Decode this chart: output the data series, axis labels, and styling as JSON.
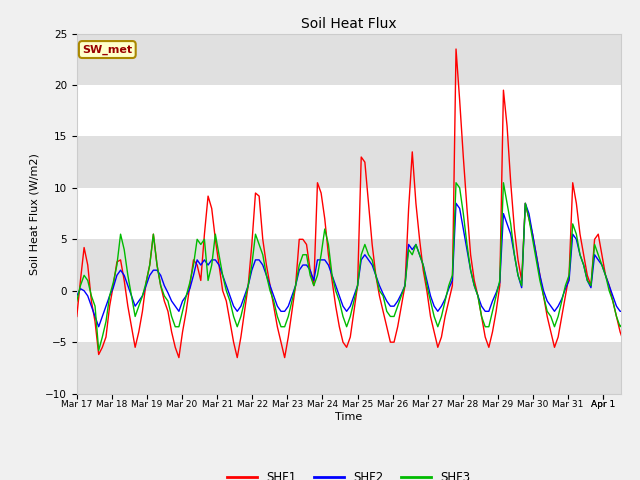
{
  "title": "Soil Heat Flux",
  "ylabel": "Soil Heat Flux (W/m2)",
  "xlabel": "Time",
  "ylim": [
    -10,
    25
  ],
  "yticks": [
    -10,
    -5,
    0,
    5,
    10,
    15,
    20,
    25
  ],
  "bg_color": "#f0f0f0",
  "ax_bg_color": "#e0e0e0",
  "grid_color": "#ffffff",
  "shf1_color": "#ff0000",
  "shf2_color": "#0000ff",
  "shf3_color": "#00bb00",
  "annotation_text": "SW_met",
  "annotation_bg": "#ffffcc",
  "annotation_border": "#aa8800",
  "annotation_text_color": "#990000",
  "legend_labels": [
    "SHF1",
    "SHF2",
    "SHF3"
  ],
  "shf1": [
    -2.5,
    1.0,
    4.2,
    2.5,
    -1.0,
    -3.0,
    -6.2,
    -5.5,
    -4.5,
    -1.5,
    0.5,
    2.8,
    3.0,
    1.0,
    -1.5,
    -3.5,
    -5.5,
    -4.0,
    -2.0,
    0.8,
    2.5,
    5.5,
    2.5,
    0.5,
    -1.0,
    -2.0,
    -4.0,
    -5.5,
    -6.5,
    -4.0,
    -2.0,
    0.5,
    3.0,
    2.5,
    1.0,
    5.5,
    9.2,
    8.0,
    5.0,
    2.5,
    0.0,
    -1.0,
    -3.0,
    -5.0,
    -6.5,
    -4.5,
    -2.0,
    0.5,
    4.5,
    9.5,
    9.2,
    5.0,
    2.5,
    0.5,
    -1.5,
    -3.5,
    -5.0,
    -6.5,
    -4.5,
    -2.0,
    0.5,
    5.0,
    5.0,
    4.5,
    2.0,
    0.5,
    10.5,
    9.5,
    7.0,
    3.5,
    1.0,
    -1.5,
    -3.5,
    -5.0,
    -5.5,
    -4.5,
    -2.0,
    0.5,
    13.0,
    12.5,
    8.5,
    4.5,
    1.5,
    -0.5,
    -2.0,
    -3.5,
    -5.0,
    -5.0,
    -3.5,
    -1.5,
    0.5,
    8.0,
    13.5,
    8.5,
    5.0,
    2.0,
    0.0,
    -2.5,
    -4.0,
    -5.5,
    -4.5,
    -2.5,
    -1.0,
    0.5,
    23.5,
    18.5,
    13.0,
    8.0,
    3.5,
    1.0,
    -0.5,
    -2.5,
    -4.5,
    -5.5,
    -4.0,
    -2.0,
    0.5,
    19.5,
    16.0,
    10.5,
    6.0,
    3.0,
    1.0,
    8.5,
    7.0,
    5.5,
    3.5,
    1.5,
    -0.5,
    -2.5,
    -4.0,
    -5.5,
    -4.5,
    -2.5,
    -0.5,
    1.5,
    10.5,
    8.5,
    5.5,
    3.5,
    1.5,
    0.5,
    5.0,
    5.5,
    3.5,
    1.5,
    0.5,
    -1.0,
    -2.5,
    -4.0,
    -5.0,
    -4.5,
    -2.5,
    0.5,
    5.0
  ],
  "shf2": [
    -0.5,
    0.2,
    0.0,
    -0.5,
    -1.5,
    -2.5,
    -3.5,
    -2.5,
    -1.5,
    -0.5,
    0.3,
    1.5,
    2.0,
    1.5,
    0.5,
    -0.5,
    -1.5,
    -1.0,
    -0.5,
    0.5,
    1.5,
    2.0,
    2.0,
    1.5,
    0.5,
    -0.2,
    -1.0,
    -1.5,
    -2.0,
    -1.0,
    -0.5,
    0.2,
    1.5,
    3.0,
    2.5,
    3.0,
    2.5,
    3.0,
    3.0,
    2.5,
    1.5,
    0.5,
    -0.5,
    -1.5,
    -2.0,
    -1.5,
    -0.5,
    0.5,
    2.0,
    3.0,
    3.0,
    2.5,
    1.5,
    0.5,
    -0.5,
    -1.5,
    -2.0,
    -2.0,
    -1.5,
    -0.5,
    0.5,
    2.0,
    2.5,
    2.5,
    2.0,
    1.0,
    3.0,
    3.0,
    3.0,
    2.5,
    1.5,
    0.5,
    -0.5,
    -1.5,
    -2.0,
    -1.5,
    -0.5,
    0.5,
    3.0,
    3.5,
    3.0,
    2.5,
    1.5,
    0.5,
    -0.3,
    -1.0,
    -1.5,
    -1.5,
    -1.0,
    -0.3,
    0.5,
    4.5,
    4.0,
    4.5,
    3.5,
    2.5,
    1.0,
    -0.5,
    -1.5,
    -2.0,
    -1.5,
    -0.8,
    0.2,
    1.0,
    8.5,
    8.0,
    6.0,
    4.0,
    2.0,
    0.5,
    -0.5,
    -1.5,
    -2.0,
    -2.0,
    -1.0,
    -0.2,
    0.8,
    7.5,
    6.5,
    5.5,
    3.5,
    1.5,
    0.3,
    8.5,
    7.5,
    5.5,
    3.5,
    1.5,
    0.0,
    -1.0,
    -1.5,
    -2.0,
    -1.5,
    -0.8,
    0.2,
    1.0,
    5.5,
    5.0,
    3.5,
    2.5,
    1.0,
    0.3,
    3.5,
    3.0,
    2.5,
    1.5,
    0.5,
    -0.5,
    -1.5,
    -2.0,
    -2.0,
    -1.5,
    -0.5,
    0.5,
    3.0
  ],
  "shf3": [
    -1.0,
    0.5,
    1.5,
    1.0,
    -0.5,
    -1.5,
    -5.8,
    -4.5,
    -3.0,
    -0.5,
    0.8,
    2.5,
    5.5,
    4.0,
    1.5,
    -0.5,
    -2.5,
    -1.5,
    -0.5,
    0.8,
    2.5,
    5.5,
    2.5,
    0.5,
    -0.5,
    -1.0,
    -2.5,
    -3.5,
    -3.5,
    -2.0,
    -0.5,
    0.8,
    2.5,
    5.0,
    4.5,
    5.0,
    1.0,
    2.5,
    5.5,
    3.5,
    1.5,
    0.0,
    -1.0,
    -2.5,
    -3.5,
    -2.5,
    -1.0,
    0.5,
    2.5,
    5.5,
    4.5,
    3.5,
    1.5,
    0.0,
    -1.0,
    -2.5,
    -3.5,
    -3.5,
    -2.5,
    -1.0,
    0.5,
    2.5,
    3.5,
    3.5,
    1.5,
    0.5,
    1.5,
    3.5,
    6.0,
    4.5,
    1.5,
    0.0,
    -1.0,
    -2.5,
    -3.5,
    -2.5,
    -1.0,
    0.5,
    3.5,
    4.5,
    3.5,
    3.0,
    1.5,
    0.0,
    -0.5,
    -2.0,
    -2.5,
    -2.5,
    -1.5,
    -0.5,
    0.5,
    4.0,
    3.5,
    4.5,
    3.5,
    2.5,
    0.5,
    -1.0,
    -2.5,
    -3.5,
    -2.5,
    -1.0,
    0.5,
    1.5,
    10.5,
    10.0,
    7.5,
    4.5,
    2.0,
    0.5,
    -0.5,
    -2.5,
    -3.5,
    -3.5,
    -2.0,
    -0.5,
    1.0,
    10.5,
    8.5,
    6.5,
    3.5,
    1.5,
    0.5,
    8.5,
    7.0,
    5.0,
    3.0,
    1.0,
    -0.5,
    -2.0,
    -2.5,
    -3.5,
    -2.5,
    -1.0,
    0.5,
    1.5,
    6.5,
    5.5,
    3.5,
    2.5,
    1.0,
    0.5,
    4.5,
    3.5,
    2.5,
    1.5,
    0.0,
    -1.0,
    -2.5,
    -3.5,
    -3.0,
    -2.0,
    0.0,
    1.5,
    3.5
  ]
}
